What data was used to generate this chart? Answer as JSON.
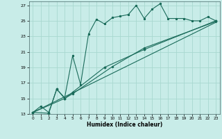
{
  "title": "",
  "xlabel": "Humidex (Indice chaleur)",
  "ylabel": "",
  "bg_color": "#c8ece8",
  "grid_color": "#a8d8d0",
  "line_color": "#1a6b5a",
  "xlim": [
    -0.5,
    23.5
  ],
  "ylim": [
    13,
    27.5
  ],
  "xticks": [
    0,
    1,
    2,
    3,
    4,
    5,
    6,
    7,
    8,
    9,
    10,
    11,
    12,
    13,
    14,
    15,
    16,
    17,
    18,
    19,
    20,
    21,
    22,
    23
  ],
  "yticks": [
    13,
    15,
    17,
    19,
    21,
    23,
    25,
    27
  ],
  "series1_x": [
    0,
    1,
    2,
    3,
    4,
    5,
    6,
    7,
    8,
    9,
    10,
    11,
    12,
    13,
    14,
    15,
    16,
    17,
    18,
    19,
    20,
    21,
    22,
    23
  ],
  "series1_y": [
    13.2,
    14.0,
    13.2,
    16.2,
    15.1,
    20.5,
    16.8,
    23.3,
    25.2,
    24.6,
    25.4,
    25.6,
    25.8,
    27.0,
    25.3,
    26.5,
    27.2,
    25.3,
    25.3,
    25.3,
    25.0,
    25.0,
    25.5,
    25.0
  ],
  "series2_x": [
    0,
    2,
    3,
    4,
    5,
    9,
    14,
    23
  ],
  "series2_y": [
    13.2,
    13.1,
    16.2,
    15.0,
    15.8,
    19.0,
    21.3,
    25.0
  ],
  "series3_x": [
    0,
    4,
    5,
    10,
    14,
    23
  ],
  "series3_y": [
    13.2,
    15.0,
    15.6,
    19.1,
    21.5,
    24.9
  ],
  "series4_x": [
    0,
    23
  ],
  "series4_y": [
    13.2,
    24.8
  ]
}
